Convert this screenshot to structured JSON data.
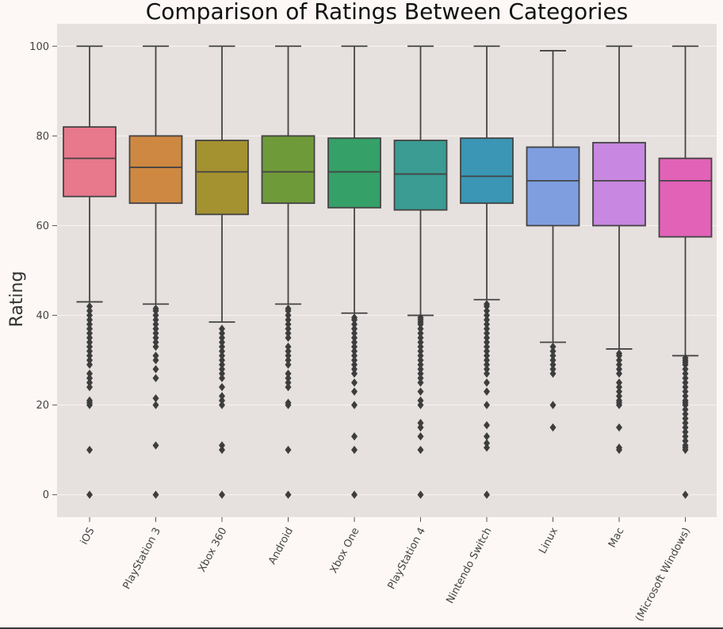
{
  "colors": {
    "page_background": "#fdf8f5",
    "plot_background": "#e6e0de",
    "grid": "#f6f2f0",
    "box_edge": "#444444",
    "whisker": "#444444",
    "outlier": "#3d3d3d"
  },
  "chart_data": {
    "type": "box",
    "title": "Comparison of Ratings Between Categories",
    "xlabel": "",
    "ylabel": "Rating",
    "ylim": [
      -5,
      105
    ],
    "yticks": [
      0,
      20,
      40,
      60,
      80,
      100
    ],
    "ytick_labels": [
      "0",
      "20",
      "40",
      "60",
      "80",
      "100"
    ],
    "grid": true,
    "categories": [
      "iOS",
      "PlayStation 3",
      "Xbox 360",
      "Android",
      "Xbox One",
      "PlayStation 4",
      "Nintendo Switch",
      "Linux",
      "Mac",
      "(Microsoft Windows)"
    ],
    "boxes": [
      {
        "category": "iOS",
        "color": "#e8788c",
        "whisker_low": 43,
        "q1": 66.5,
        "median": 75,
        "q3": 82,
        "whisker_high": 100,
        "outliers": [
          42,
          41,
          40,
          39,
          38,
          37,
          36,
          35,
          34,
          33,
          32,
          31,
          30,
          29,
          27,
          26,
          25,
          24,
          21,
          20.5,
          20,
          10,
          0
        ]
      },
      {
        "category": "PlayStation 3",
        "color": "#ce8842",
        "whisker_low": 42.5,
        "q1": 65,
        "median": 73,
        "q3": 80,
        "whisker_high": 100,
        "outliers": [
          41.5,
          41,
          40,
          39,
          38,
          37,
          36,
          35,
          34,
          33,
          31,
          30,
          28,
          26,
          21.5,
          20,
          11,
          0
        ]
      },
      {
        "category": "Xbox 360",
        "color": "#a49130",
        "whisker_low": 38.5,
        "q1": 62.5,
        "median": 72,
        "q3": 79,
        "whisker_high": 100,
        "outliers": [
          37,
          36,
          35,
          34,
          33,
          32,
          31,
          30,
          29,
          28,
          27,
          26,
          24,
          22,
          21,
          20,
          11,
          10,
          0
        ]
      },
      {
        "category": "Android",
        "color": "#6f9a3a",
        "whisker_low": 42.5,
        "q1": 65,
        "median": 72,
        "q3": 80,
        "whisker_high": 100,
        "outliers": [
          41.5,
          41,
          40,
          39,
          38,
          37,
          36,
          35,
          33,
          32,
          31,
          30,
          29,
          27,
          26,
          25,
          24,
          20.5,
          20,
          10,
          0
        ]
      },
      {
        "category": "Xbox One",
        "color": "#35a067",
        "whisker_low": 40.5,
        "q1": 64,
        "median": 72,
        "q3": 79.5,
        "whisker_high": 100,
        "outliers": [
          39.5,
          39,
          38,
          37,
          36,
          35,
          34,
          33,
          32,
          31,
          30,
          29,
          28,
          27,
          25,
          23,
          20,
          13,
          10,
          0
        ]
      },
      {
        "category": "PlayStation 4",
        "color": "#3a9c93",
        "whisker_low": 40,
        "q1": 63.5,
        "median": 71.5,
        "q3": 79,
        "whisker_high": 100,
        "outliers": [
          39.5,
          39,
          38.5,
          38,
          37,
          36,
          35,
          34,
          33,
          32,
          31,
          30,
          29,
          28,
          27,
          26,
          25,
          23,
          21,
          20,
          16,
          15,
          13,
          10,
          0
        ]
      },
      {
        "category": "Nintendo Switch",
        "color": "#3a96b4",
        "whisker_low": 43.5,
        "q1": 65,
        "median": 71,
        "q3": 79.5,
        "whisker_high": 100,
        "outliers": [
          42.5,
          42,
          41,
          40,
          39,
          38,
          37,
          36,
          35,
          34,
          33,
          32,
          31,
          30,
          29,
          28,
          27,
          25,
          23,
          20,
          15.5,
          13,
          11.5,
          10.5,
          0
        ]
      },
      {
        "category": "Linux",
        "color": "#7e9ee0",
        "whisker_low": 34,
        "q1": 60,
        "median": 70,
        "q3": 77.5,
        "whisker_high": 99,
        "outliers": [
          33,
          32,
          31,
          30,
          29,
          28,
          27,
          20,
          15
        ]
      },
      {
        "category": "Mac",
        "color": "#c887e0",
        "whisker_low": 32.5,
        "q1": 60,
        "median": 70,
        "q3": 78.5,
        "whisker_high": 100,
        "outliers": [
          31.5,
          31,
          30,
          29,
          28,
          27,
          25,
          24,
          23,
          22,
          21,
          20.5,
          20,
          15,
          10.5,
          10
        ]
      },
      {
        "category": "(Microsoft Windows)",
        "color": "#e262b8",
        "whisker_low": 31,
        "q1": 57.5,
        "median": 70,
        "q3": 75,
        "whisker_high": 100,
        "outliers": [
          30.5,
          30,
          29.5,
          29,
          28,
          27,
          26,
          25,
          24,
          23,
          22,
          21,
          20.5,
          20,
          19,
          18,
          17,
          16,
          15,
          14,
          13,
          12,
          11,
          10.5,
          10,
          0
        ]
      }
    ]
  }
}
